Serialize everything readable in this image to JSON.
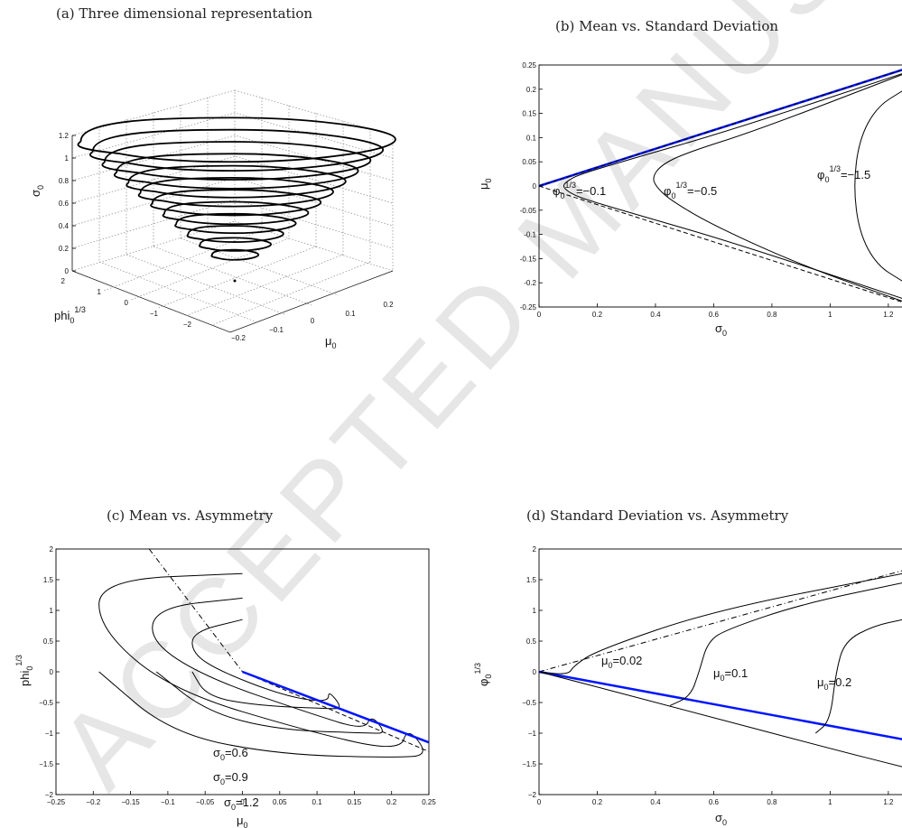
{
  "watermark": "ACCEPTED MANUSCRIPT",
  "panels": {
    "a": {
      "caption": "(a) Three dimensional representation",
      "zlabel": "σ",
      "zlabel_sub": "0",
      "ylabel": "phi",
      "ylabel_sub": "0",
      "ylabel_sup": "1/3",
      "xlabel": "μ",
      "xlabel_sub": "0",
      "z_ticks": [
        "0",
        "0.2",
        "0.4",
        "0.6",
        "0.8",
        "1",
        "1.2"
      ],
      "phi_ticks": [
        "2",
        "1",
        "0",
        "−1",
        "−2"
      ],
      "mu_ticks": [
        "0.2",
        "0.1",
        "0",
        "−0.1",
        "−0.2"
      ]
    },
    "b": {
      "caption": "(b) Mean vs. Standard Deviation",
      "xlabel": "σ",
      "xlabel_sub": "0",
      "ylabel": "μ",
      "ylabel_sub": "0",
      "x_ticks": [
        "0",
        "0.2",
        "0.4",
        "0.6",
        "0.8",
        "1",
        "1.2"
      ],
      "y_ticks": [
        "0.25",
        "0.2",
        "0.15",
        "0.1",
        "0.05",
        "0",
        "-0.05",
        "-0.1",
        "-0.15",
        "-0.2",
        "-0.25"
      ],
      "annotations": [
        {
          "base": "φ",
          "sub": "0",
          "sup": "1/3",
          "rest": "=−0.1"
        },
        {
          "base": "φ",
          "sub": "0",
          "sup": "1/3",
          "rest": "=−0.5"
        },
        {
          "base": "φ",
          "sub": "0",
          "sup": "1/3",
          "rest": "=−1.5"
        }
      ]
    },
    "c": {
      "caption": "(c) Mean vs. Asymmetry",
      "xlabel": "μ",
      "xlabel_sub": "0",
      "ylabel": "phi",
      "ylabel_sub": "0",
      "ylabel_sup": "1/3",
      "x_ticks": [
        "−0.25",
        "−0.2",
        "−0.15",
        "−0.1",
        "−0.05",
        "0",
        "0.05",
        "0.1",
        "0.15",
        "0.2",
        "0.25"
      ],
      "y_ticks": [
        "2",
        "1.5",
        "1",
        "0.5",
        "0",
        "−0.5",
        "−1",
        "−1.5",
        "−2"
      ],
      "annotations": [
        {
          "base": "σ",
          "sub": "0",
          "rest": "=0.6"
        },
        {
          "base": "σ",
          "sub": "0",
          "rest": "=0.9"
        },
        {
          "base": "σ",
          "sub": "0",
          "rest": "=1.2"
        }
      ]
    },
    "d": {
      "caption": "(d) Standard Deviation vs. Asymmetry",
      "xlabel": "σ",
      "xlabel_sub": "0",
      "ylabel": "φ",
      "ylabel_sub": "0",
      "ylabel_sup": "1/3",
      "x_ticks": [
        "0",
        "0.2",
        "0.4",
        "0.6",
        "0.8",
        "1",
        "1.2"
      ],
      "y_ticks": [
        "2",
        "1.5",
        "1",
        "0.5",
        "0",
        "−0.5",
        "−1",
        "−1.5",
        "−2"
      ],
      "annotations": [
        {
          "base": "μ",
          "sub": "0",
          "rest": "=0.02"
        },
        {
          "base": "μ",
          "sub": "0",
          "rest": "=0.1"
        },
        {
          "base": "μ",
          "sub": "0",
          "rest": "=0.2"
        }
      ]
    }
  },
  "chart_data": [
    {
      "type": "line",
      "panel": "b",
      "xlim": [
        0,
        1.25
      ],
      "ylim": [
        -0.26,
        0.26
      ],
      "series": [
        {
          "style": "solid-thick-blue",
          "x": [
            0,
            1.25
          ],
          "y": [
            0,
            0.25
          ]
        },
        {
          "style": "dashed",
          "x": [
            0,
            1.25
          ],
          "y": [
            0,
            0.25
          ]
        },
        {
          "style": "dashed",
          "x": [
            0,
            1.25
          ],
          "y": [
            0,
            -0.25
          ]
        },
        {
          "style": "solid",
          "x": [
            1.25,
            0.66,
            0.3,
            0.14,
            0.1,
            0.08,
            0.1,
            0.14,
            0.3,
            0.66,
            1.25
          ],
          "y": [
            0.242,
            0.12,
            0.055,
            0.025,
            0.012,
            0.0,
            -0.012,
            -0.025,
            -0.055,
            -0.12,
            -0.242
          ]
        },
        {
          "style": "solid",
          "x": [
            1.25,
            0.75,
            0.5,
            0.42,
            0.39,
            0.4,
            0.45,
            0.6,
            0.9,
            1.25
          ],
          "y": [
            0.24,
            0.12,
            0.07,
            0.045,
            0.02,
            0.0,
            -0.03,
            -0.085,
            -0.17,
            -0.248
          ]
        },
        {
          "style": "solid",
          "x": [
            1.25,
            1.16,
            1.1,
            1.08,
            1.1,
            1.16,
            1.25
          ],
          "y": [
            0.205,
            0.17,
            0.1,
            0.0,
            -0.1,
            -0.17,
            -0.205
          ]
        }
      ]
    },
    {
      "type": "line",
      "panel": "c",
      "xlim": [
        -0.26,
        0.26
      ],
      "ylim": [
        -2,
        2
      ],
      "series": [
        {
          "name": "σ0=0.6",
          "style": "solid",
          "x": [
            0.0,
            -0.07,
            -0.07,
            -0.03,
            0.06,
            0.12,
            0.12,
            0.14,
            0.12,
            0.02,
            -0.05,
            -0.07
          ],
          "y": [
            0.85,
            0.65,
            0.3,
            0.0,
            -0.4,
            -0.5,
            -0.3,
            -0.6,
            -0.6,
            -0.55,
            -0.4,
            0.0
          ]
        },
        {
          "name": "σ0=0.9",
          "style": "solid",
          "x": [
            0.0,
            -0.12,
            -0.13,
            -0.05,
            0.1,
            0.17,
            0.18,
            0.2,
            0.18,
            0.05,
            -0.05,
            -0.12
          ],
          "y": [
            1.2,
            1.05,
            0.5,
            -0.1,
            -0.7,
            -0.95,
            -0.7,
            -1.0,
            -1.0,
            -0.95,
            -0.65,
            0.0
          ]
        },
        {
          "name": "σ0=1.2",
          "style": "solid",
          "x": [
            0.0,
            -0.2,
            -0.2,
            -0.1,
            0.1,
            0.22,
            0.23,
            0.26,
            0.22,
            0.05,
            -0.1,
            -0.2
          ],
          "y": [
            1.6,
            1.5,
            0.7,
            -0.3,
            -1.0,
            -1.3,
            -0.9,
            -1.35,
            -1.4,
            -1.35,
            -1.0,
            0.0
          ]
        },
        {
          "style": "dashdot",
          "x": [
            -0.13,
            0.0
          ],
          "y": [
            2.0,
            0.0
          ]
        },
        {
          "style": "dashed",
          "x": [
            0.0,
            0.26
          ],
          "y": [
            0.0,
            -1.3
          ]
        },
        {
          "style": "solid-thick-blue",
          "x": [
            0.0,
            0.26
          ],
          "y": [
            0.0,
            -1.15
          ]
        }
      ]
    },
    {
      "type": "line",
      "panel": "d",
      "xlim": [
        0,
        1.25
      ],
      "ylim": [
        -2,
        2
      ],
      "series": [
        {
          "style": "dashdot",
          "x": [
            0,
            1.25
          ],
          "y": [
            0,
            1.65
          ]
        },
        {
          "style": "solid-thick-blue",
          "x": [
            0,
            1.25
          ],
          "y": [
            0,
            -1.1
          ]
        },
        {
          "style": "solid",
          "x": [
            0,
            0.1,
            0.12,
            0.2,
            0.6,
            1.25
          ],
          "y": [
            0,
            -0.05,
            0.1,
            0.35,
            1.0,
            1.6
          ]
        },
        {
          "style": "solid",
          "x": [
            0.45,
            0.52,
            0.55,
            0.58,
            0.65,
            0.9,
            1.25
          ],
          "y": [
            -0.55,
            -0.4,
            0.0,
            0.5,
            0.7,
            1.1,
            1.45
          ]
        },
        {
          "style": "solid",
          "x": [
            0.95,
            1.0,
            1.02,
            1.05,
            1.15,
            1.25
          ],
          "y": [
            -1.0,
            -0.8,
            0.0,
            0.5,
            0.75,
            0.85
          ]
        },
        {
          "style": "solid",
          "x": [
            0,
            0.5,
            1.0,
            1.25
          ],
          "y": [
            0,
            -0.62,
            -1.25,
            -1.55
          ]
        }
      ]
    },
    {
      "type": "surface3d",
      "panel": "a",
      "zlim": [
        0,
        1.2
      ],
      "contours_sigma": [
        0.0,
        0.1,
        0.2,
        0.3,
        0.4,
        0.5,
        0.6,
        0.7,
        0.8,
        0.9,
        1.0,
        1.1,
        1.2
      ]
    }
  ]
}
